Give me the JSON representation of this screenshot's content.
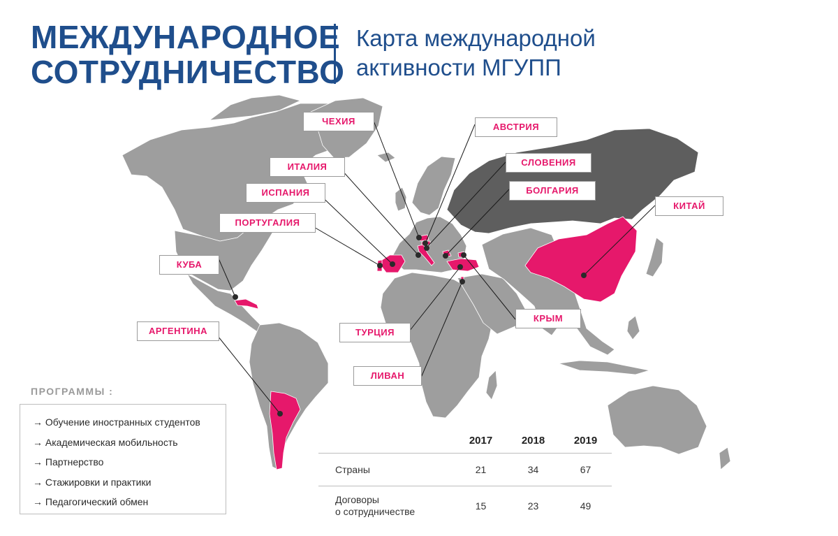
{
  "header": {
    "title": "МЕЖДУНАРОДНОЕ\nСОТРУДНИЧЕСТВО",
    "subtitle": "Карта международной\nактивности МГУПП"
  },
  "colors": {
    "brand_blue": "#1f4e8c",
    "highlight": "#e6186b",
    "land": "#9e9e9e",
    "russia": "#5e5e5e",
    "label_border": "#9a9a9a"
  },
  "map": {
    "highlighted_countries": [
      "ЧЕХИЯ",
      "АВСТРИЯ",
      "ИТАЛИЯ",
      "СЛОВЕНИЯ",
      "ИСПАНИЯ",
      "БОЛГАРИЯ",
      "ПОРТУГАЛИЯ",
      "КИТАЙ",
      "КУБА",
      "АРГЕНТИНА",
      "ТУРЦИЯ",
      "КРЫМ",
      "ЛИВАН"
    ],
    "labels": {
      "czech": "ЧЕХИЯ",
      "austria": "АВСТРИЯ",
      "italy": "ИТАЛИЯ",
      "slovenia": "СЛОВЕНИЯ",
      "spain": "ИСПАНИЯ",
      "bulgaria": "БОЛГАРИЯ",
      "portugal": "ПОРТУГАЛИЯ",
      "china": "КИТАЙ",
      "cuba": "КУБА",
      "argentina": "АРГЕНТИНА",
      "turkey": "ТУРЦИЯ",
      "crimea": "КРЫМ",
      "lebanon": "ЛИВАН"
    }
  },
  "programs": {
    "title": "ПРОГРАММЫ :",
    "items": [
      "→ Обучение иностранных студентов",
      "→ Академическая мобильность",
      "→ Партнерство",
      "→ Стажировки и практики",
      "→ Педагогический обмен"
    ]
  },
  "stats": {
    "years": [
      "2017",
      "2018",
      "2019"
    ],
    "rows": [
      {
        "label": "Страны",
        "values": [
          "21",
          "34",
          "67"
        ]
      },
      {
        "label": "Договоры\nо сотрудничестве",
        "values": [
          "15",
          "23",
          "49"
        ]
      }
    ]
  }
}
